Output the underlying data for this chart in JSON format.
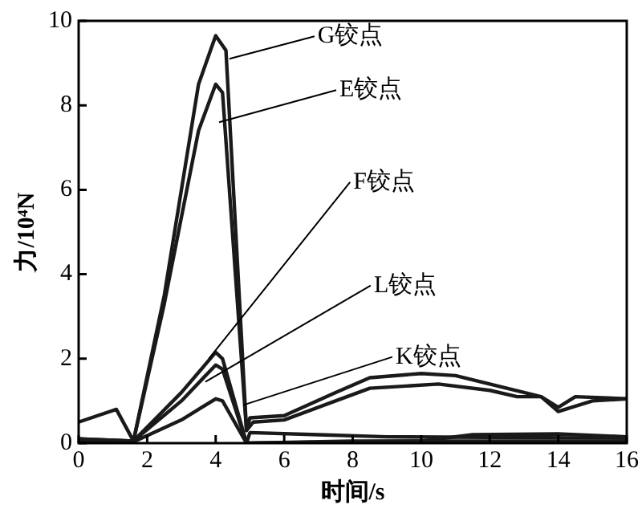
{
  "chart_data": {
    "type": "line",
    "xlabel": "时间/s",
    "ylabel": "力/10⁴N",
    "xlim": [
      0,
      16
    ],
    "xticks": [
      0,
      2,
      4,
      6,
      8,
      10,
      12,
      14,
      16
    ],
    "ylim": [
      0,
      10
    ],
    "yticks": [
      0,
      2,
      4,
      6,
      8,
      10
    ],
    "grid": false,
    "legend": false,
    "marker": "none",
    "line_style": "solid",
    "series": [
      {
        "color": "#1a1a1a",
        "x": [
          0,
          1.1,
          1.6,
          2.5,
          3.5,
          4,
          4.3,
          4.9,
          5,
          6,
          7.5,
          8.5,
          10,
          11,
          12.5,
          13.5,
          14,
          14.5,
          16
        ],
        "values": [
          0.5,
          0.8,
          0.05,
          3.5,
          8.5,
          9.65,
          9.3,
          0.3,
          0.6,
          0.65,
          1.2,
          1.55,
          1.65,
          1.6,
          1.3,
          1.1,
          0.85,
          1.1,
          1.05
        ]
      },
      {
        "color": "#1a1a1a",
        "x": [
          0,
          1.6,
          2.5,
          3.5,
          4,
          4.2,
          4.9,
          5.1,
          6,
          7.5,
          8.5,
          10.5,
          12,
          12.8,
          13.5,
          14,
          15,
          16
        ],
        "values": [
          0.1,
          0.05,
          3.3,
          7.4,
          8.5,
          8.3,
          0.3,
          0.5,
          0.55,
          1.0,
          1.3,
          1.4,
          1.25,
          1.1,
          1.1,
          0.75,
          1.0,
          1.05
        ]
      },
      {
        "color": "#1a1a1a",
        "x": [
          0,
          1.6,
          3,
          4,
          4.2,
          4.9,
          5,
          7,
          9,
          16
        ],
        "values": [
          0.1,
          0.05,
          1.2,
          2.15,
          2.0,
          0,
          0.25,
          0.2,
          0.15,
          0.12
        ]
      },
      {
        "color": "#1a1a1a",
        "x": [
          0,
          1.6,
          3,
          4,
          4.2,
          4.9,
          8,
          10,
          11.5,
          14,
          16
        ],
        "values": [
          0.08,
          0.05,
          1.0,
          1.85,
          1.75,
          0,
          0.05,
          0.05,
          0.2,
          0.22,
          0.15
        ]
      },
      {
        "color": "#1a1a1a",
        "x": [
          0,
          1.6,
          3,
          4,
          4.2,
          4.9,
          10,
          16
        ],
        "values": [
          0.05,
          0.03,
          0.55,
          1.05,
          1.0,
          0,
          0.05,
          0.05
        ]
      }
    ],
    "annotations": [
      {
        "text": "G铰点",
        "x": 4.4,
        "y": 9.1
      },
      {
        "text": "E铰点",
        "x": 4.1,
        "y": 7.6
      },
      {
        "text": "F铰点",
        "x": 3.8,
        "y": 2.0
      },
      {
        "text": "L铰点",
        "x": 3.7,
        "y": 1.45
      },
      {
        "text": "K铰点",
        "x": 4.8,
        "y": 0.9
      }
    ]
  }
}
